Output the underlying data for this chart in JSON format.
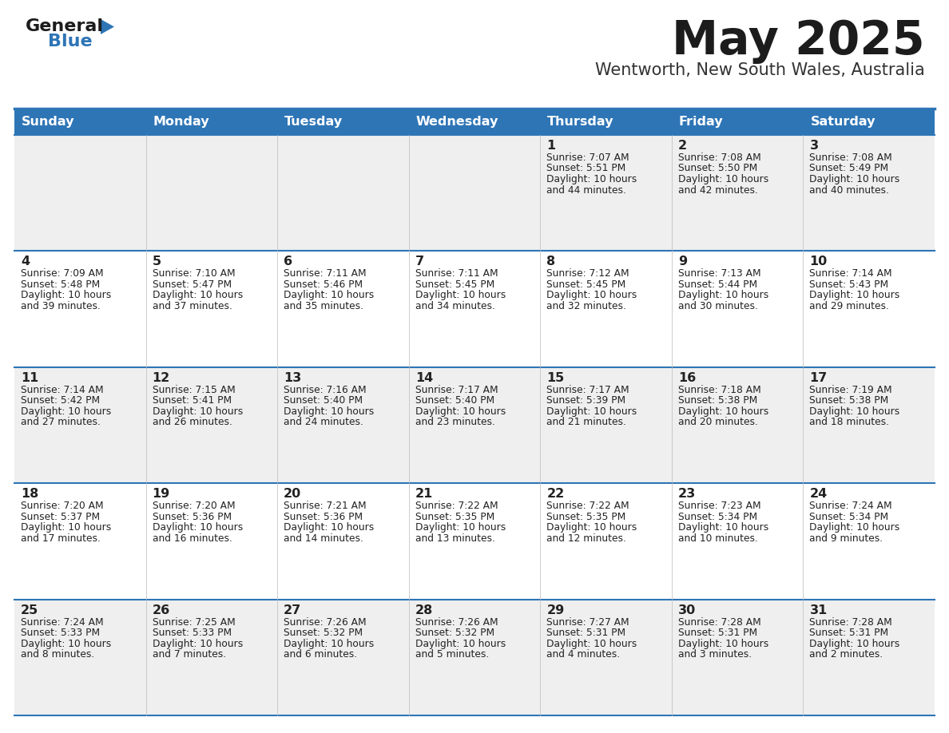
{
  "title": "May 2025",
  "subtitle": "Wentworth, New South Wales, Australia",
  "header_color": "#2E75B6",
  "header_text_color": "#FFFFFF",
  "cell_bg_even": "#EFEFEF",
  "cell_bg_odd": "#FFFFFF",
  "text_color": "#222222",
  "day_headers": [
    "Sunday",
    "Monday",
    "Tuesday",
    "Wednesday",
    "Thursday",
    "Friday",
    "Saturday"
  ],
  "calendar_data": [
    [
      {
        "day": "",
        "sunrise": "",
        "sunset": "",
        "daylight_line1": "",
        "daylight_line2": ""
      },
      {
        "day": "",
        "sunrise": "",
        "sunset": "",
        "daylight_line1": "",
        "daylight_line2": ""
      },
      {
        "day": "",
        "sunrise": "",
        "sunset": "",
        "daylight_line1": "",
        "daylight_line2": ""
      },
      {
        "day": "",
        "sunrise": "",
        "sunset": "",
        "daylight_line1": "",
        "daylight_line2": ""
      },
      {
        "day": "1",
        "sunrise": "7:07 AM",
        "sunset": "5:51 PM",
        "daylight_line1": "Daylight: 10 hours",
        "daylight_line2": "and 44 minutes."
      },
      {
        "day": "2",
        "sunrise": "7:08 AM",
        "sunset": "5:50 PM",
        "daylight_line1": "Daylight: 10 hours",
        "daylight_line2": "and 42 minutes."
      },
      {
        "day": "3",
        "sunrise": "7:08 AM",
        "sunset": "5:49 PM",
        "daylight_line1": "Daylight: 10 hours",
        "daylight_line2": "and 40 minutes."
      }
    ],
    [
      {
        "day": "4",
        "sunrise": "7:09 AM",
        "sunset": "5:48 PM",
        "daylight_line1": "Daylight: 10 hours",
        "daylight_line2": "and 39 minutes."
      },
      {
        "day": "5",
        "sunrise": "7:10 AM",
        "sunset": "5:47 PM",
        "daylight_line1": "Daylight: 10 hours",
        "daylight_line2": "and 37 minutes."
      },
      {
        "day": "6",
        "sunrise": "7:11 AM",
        "sunset": "5:46 PM",
        "daylight_line1": "Daylight: 10 hours",
        "daylight_line2": "and 35 minutes."
      },
      {
        "day": "7",
        "sunrise": "7:11 AM",
        "sunset": "5:45 PM",
        "daylight_line1": "Daylight: 10 hours",
        "daylight_line2": "and 34 minutes."
      },
      {
        "day": "8",
        "sunrise": "7:12 AM",
        "sunset": "5:45 PM",
        "daylight_line1": "Daylight: 10 hours",
        "daylight_line2": "and 32 minutes."
      },
      {
        "day": "9",
        "sunrise": "7:13 AM",
        "sunset": "5:44 PM",
        "daylight_line1": "Daylight: 10 hours",
        "daylight_line2": "and 30 minutes."
      },
      {
        "day": "10",
        "sunrise": "7:14 AM",
        "sunset": "5:43 PM",
        "daylight_line1": "Daylight: 10 hours",
        "daylight_line2": "and 29 minutes."
      }
    ],
    [
      {
        "day": "11",
        "sunrise": "7:14 AM",
        "sunset": "5:42 PM",
        "daylight_line1": "Daylight: 10 hours",
        "daylight_line2": "and 27 minutes."
      },
      {
        "day": "12",
        "sunrise": "7:15 AM",
        "sunset": "5:41 PM",
        "daylight_line1": "Daylight: 10 hours",
        "daylight_line2": "and 26 minutes."
      },
      {
        "day": "13",
        "sunrise": "7:16 AM",
        "sunset": "5:40 PM",
        "daylight_line1": "Daylight: 10 hours",
        "daylight_line2": "and 24 minutes."
      },
      {
        "day": "14",
        "sunrise": "7:17 AM",
        "sunset": "5:40 PM",
        "daylight_line1": "Daylight: 10 hours",
        "daylight_line2": "and 23 minutes."
      },
      {
        "day": "15",
        "sunrise": "7:17 AM",
        "sunset": "5:39 PM",
        "daylight_line1": "Daylight: 10 hours",
        "daylight_line2": "and 21 minutes."
      },
      {
        "day": "16",
        "sunrise": "7:18 AM",
        "sunset": "5:38 PM",
        "daylight_line1": "Daylight: 10 hours",
        "daylight_line2": "and 20 minutes."
      },
      {
        "day": "17",
        "sunrise": "7:19 AM",
        "sunset": "5:38 PM",
        "daylight_line1": "Daylight: 10 hours",
        "daylight_line2": "and 18 minutes."
      }
    ],
    [
      {
        "day": "18",
        "sunrise": "7:20 AM",
        "sunset": "5:37 PM",
        "daylight_line1": "Daylight: 10 hours",
        "daylight_line2": "and 17 minutes."
      },
      {
        "day": "19",
        "sunrise": "7:20 AM",
        "sunset": "5:36 PM",
        "daylight_line1": "Daylight: 10 hours",
        "daylight_line2": "and 16 minutes."
      },
      {
        "day": "20",
        "sunrise": "7:21 AM",
        "sunset": "5:36 PM",
        "daylight_line1": "Daylight: 10 hours",
        "daylight_line2": "and 14 minutes."
      },
      {
        "day": "21",
        "sunrise": "7:22 AM",
        "sunset": "5:35 PM",
        "daylight_line1": "Daylight: 10 hours",
        "daylight_line2": "and 13 minutes."
      },
      {
        "day": "22",
        "sunrise": "7:22 AM",
        "sunset": "5:35 PM",
        "daylight_line1": "Daylight: 10 hours",
        "daylight_line2": "and 12 minutes."
      },
      {
        "day": "23",
        "sunrise": "7:23 AM",
        "sunset": "5:34 PM",
        "daylight_line1": "Daylight: 10 hours",
        "daylight_line2": "and 10 minutes."
      },
      {
        "day": "24",
        "sunrise": "7:24 AM",
        "sunset": "5:34 PM",
        "daylight_line1": "Daylight: 10 hours",
        "daylight_line2": "and 9 minutes."
      }
    ],
    [
      {
        "day": "25",
        "sunrise": "7:24 AM",
        "sunset": "5:33 PM",
        "daylight_line1": "Daylight: 10 hours",
        "daylight_line2": "and 8 minutes."
      },
      {
        "day": "26",
        "sunrise": "7:25 AM",
        "sunset": "5:33 PM",
        "daylight_line1": "Daylight: 10 hours",
        "daylight_line2": "and 7 minutes."
      },
      {
        "day": "27",
        "sunrise": "7:26 AM",
        "sunset": "5:32 PM",
        "daylight_line1": "Daylight: 10 hours",
        "daylight_line2": "and 6 minutes."
      },
      {
        "day": "28",
        "sunrise": "7:26 AM",
        "sunset": "5:32 PM",
        "daylight_line1": "Daylight: 10 hours",
        "daylight_line2": "and 5 minutes."
      },
      {
        "day": "29",
        "sunrise": "7:27 AM",
        "sunset": "5:31 PM",
        "daylight_line1": "Daylight: 10 hours",
        "daylight_line2": "and 4 minutes."
      },
      {
        "day": "30",
        "sunrise": "7:28 AM",
        "sunset": "5:31 PM",
        "daylight_line1": "Daylight: 10 hours",
        "daylight_line2": "and 3 minutes."
      },
      {
        "day": "31",
        "sunrise": "7:28 AM",
        "sunset": "5:31 PM",
        "daylight_line1": "Daylight: 10 hours",
        "daylight_line2": "and 2 minutes."
      }
    ]
  ]
}
